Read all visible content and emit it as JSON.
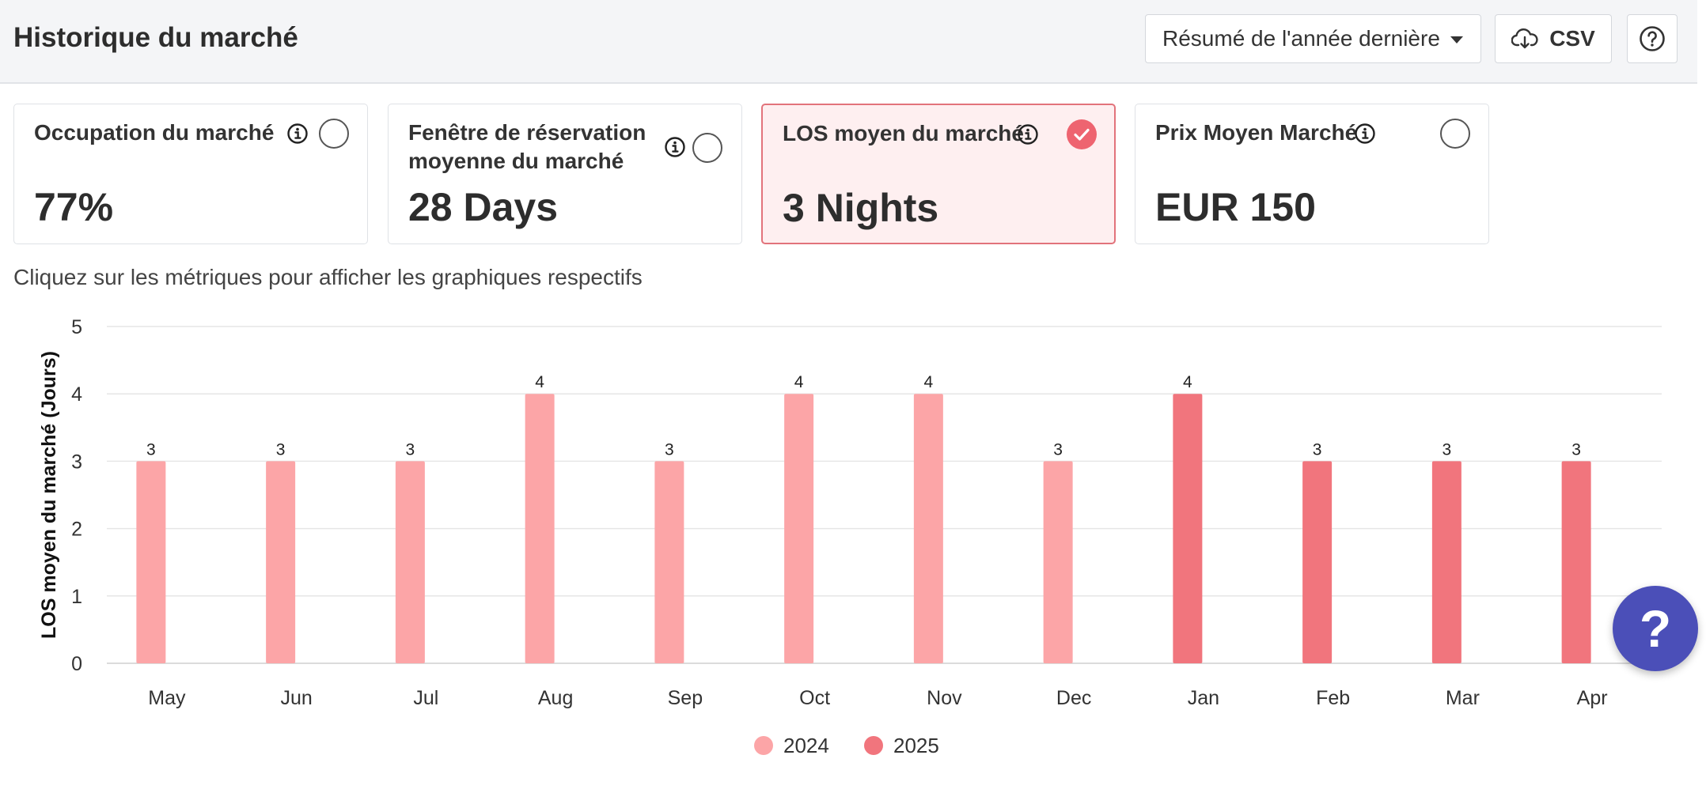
{
  "header": {
    "title": "Historique du marché",
    "period_select": {
      "value": "Résumé de l'année dernière"
    },
    "csv_label": "CSV",
    "help_icon": "question-circle-icon"
  },
  "cards": [
    {
      "label": "Occupation du marché",
      "value": "77%",
      "selected": false
    },
    {
      "label": "Fenêtre de réservation moyenne du marché",
      "value": "28 Days",
      "selected": false
    },
    {
      "label": "LOS moyen du marché",
      "value": "3 Nights",
      "selected": true
    },
    {
      "label": "Prix Moyen Marché",
      "value": "EUR 150",
      "selected": false
    }
  ],
  "hint": "Cliquez sur les métriques pour afficher les graphiques respectifs",
  "colors": {
    "series_2024": "#fca5a7",
    "series_2025": "#f1757d",
    "accent": "#ee6470",
    "help_fab": "#4b4fb8"
  },
  "chart_data": {
    "type": "bar",
    "ylabel": "LOS moyen du marché (Jours)",
    "ylim": [
      0,
      5
    ],
    "yticks": [
      0,
      1,
      2,
      3,
      4,
      5
    ],
    "grid": true,
    "legend": "bottom-center",
    "categories": [
      "May",
      "Jun",
      "Jul",
      "Aug",
      "Sep",
      "Oct",
      "Nov",
      "Dec",
      "Jan",
      "Feb",
      "Mar",
      "Apr"
    ],
    "series": [
      {
        "name": "2024",
        "values": [
          3,
          3,
          3,
          4,
          3,
          4,
          4,
          3,
          null,
          null,
          null,
          null
        ]
      },
      {
        "name": "2025",
        "values": [
          null,
          null,
          null,
          null,
          null,
          null,
          null,
          null,
          4,
          3,
          3,
          3
        ]
      }
    ]
  },
  "float_help": {
    "label": "?"
  }
}
